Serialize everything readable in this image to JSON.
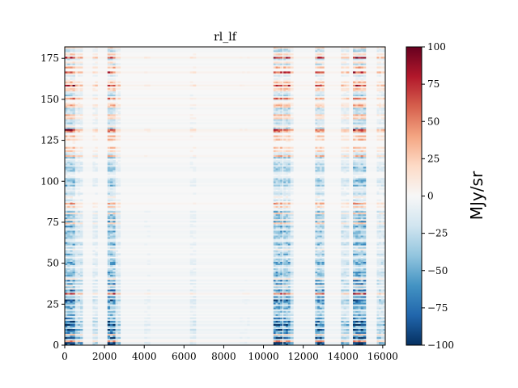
{
  "chart_data": {
    "type": "heatmap",
    "title": "rl_lf",
    "xlabel": "",
    "ylabel": "",
    "xlim": [
      0,
      16128
    ],
    "ylim": [
      0,
      182
    ],
    "x_ticks": [
      {
        "value": 0,
        "label": "0"
      },
      {
        "value": 2000,
        "label": "2000"
      },
      {
        "value": 4000,
        "label": "4000"
      },
      {
        "value": 6000,
        "label": "6000"
      },
      {
        "value": 8000,
        "label": "8000"
      },
      {
        "value": 10000,
        "label": "10000"
      },
      {
        "value": 12000,
        "label": "12000"
      },
      {
        "value": 14000,
        "label": "14000"
      },
      {
        "value": 16000,
        "label": "16000"
      }
    ],
    "y_ticks": [
      {
        "value": 0,
        "label": "0"
      },
      {
        "value": 25,
        "label": "25"
      },
      {
        "value": 50,
        "label": "50"
      },
      {
        "value": 75,
        "label": "75"
      },
      {
        "value": 100,
        "label": "100"
      },
      {
        "value": 125,
        "label": "125"
      },
      {
        "value": 150,
        "label": "150"
      },
      {
        "value": 175,
        "label": "175"
      }
    ],
    "colormap": "RdBu_r",
    "colorbar": {
      "label": "MJy/sr",
      "range": [
        -100,
        100
      ],
      "ticks": [
        {
          "value": 100,
          "label": "100"
        },
        {
          "value": 75,
          "label": "75"
        },
        {
          "value": 50,
          "label": "50"
        },
        {
          "value": 25,
          "label": "25"
        },
        {
          "value": 0,
          "label": "0"
        },
        {
          "value": -25,
          "label": "−25"
        },
        {
          "value": -50,
          "label": "−50"
        },
        {
          "value": -75,
          "label": "−75"
        },
        {
          "value": -100,
          "label": "−100"
        }
      ],
      "colors": [
        "#053061",
        "#2166ac",
        "#4393c3",
        "#92c5de",
        "#d1e5f0",
        "#f7f7f7",
        "#fddbc7",
        "#f4a582",
        "#d6604d",
        "#b2182b",
        "#67001f"
      ]
    },
    "column_bands": [
      {
        "x_start": 0,
        "x_end": 520,
        "strength": 1.0
      },
      {
        "x_start": 520,
        "x_end": 900,
        "strength": 0.45
      },
      {
        "x_start": 1400,
        "x_end": 1650,
        "strength": 0.3
      },
      {
        "x_start": 2150,
        "x_end": 2550,
        "strength": 0.95
      },
      {
        "x_start": 2550,
        "x_end": 2800,
        "strength": 0.35
      },
      {
        "x_start": 4000,
        "x_end": 4300,
        "strength": 0.12
      },
      {
        "x_start": 6300,
        "x_end": 6600,
        "strength": 0.2
      },
      {
        "x_start": 8800,
        "x_end": 9300,
        "strength": 0.08
      },
      {
        "x_start": 10500,
        "x_end": 10950,
        "strength": 0.95
      },
      {
        "x_start": 11000,
        "x_end": 11350,
        "strength": 0.9
      },
      {
        "x_start": 11350,
        "x_end": 11500,
        "strength": 0.4
      },
      {
        "x_start": 12600,
        "x_end": 13050,
        "strength": 0.85
      },
      {
        "x_start": 13900,
        "x_end": 14300,
        "strength": 0.45
      },
      {
        "x_start": 14500,
        "x_end": 15150,
        "strength": 1.0
      },
      {
        "x_start": 15700,
        "x_end": 16128,
        "strength": 0.4
      }
    ],
    "value_summary": "Mostly near 0 MJy/sr; strong negative (blue) values in low rows and in vertical bands near x≈0–500, 2200–2500, 10500–11400, 12600–13000 and 14500–15100; scattered positive (red) rows near y≈130, 150, 165, 175."
  }
}
